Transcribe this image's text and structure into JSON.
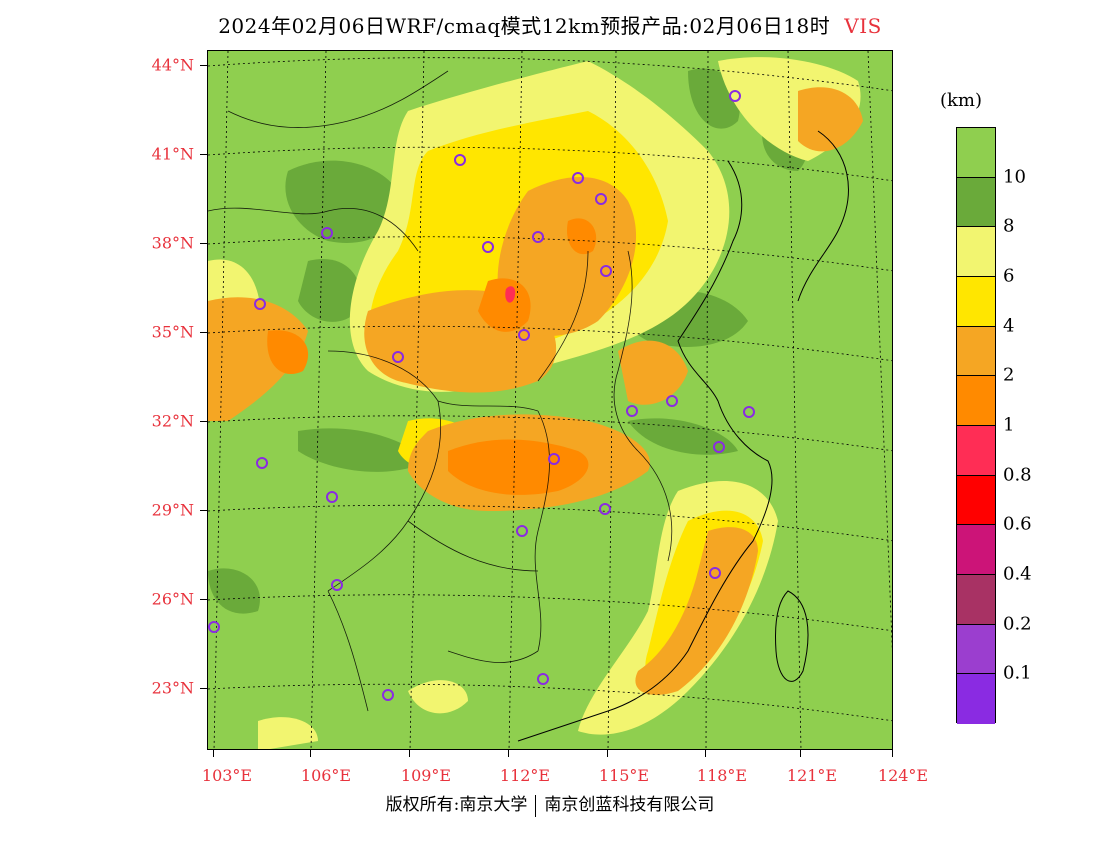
{
  "title": "2024年02月06日WRF/cmaq模式12km预报产品:02月06日18时",
  "variable": "VIS",
  "unit_label": "(km)",
  "latitude_labels": [
    "44°N",
    "41°N",
    "38°N",
    "35°N",
    "32°N",
    "29°N",
    "26°N",
    "23°N"
  ],
  "longitude_labels": [
    "103°E",
    "106°E",
    "109°E",
    "112°E",
    "115°E",
    "118°E",
    "121°E",
    "124°E"
  ],
  "colorbar": {
    "colors": [
      "#8fcf4f",
      "#6aaa3a",
      "#f2f570",
      "#ffe600",
      "#f5a623",
      "#ff8a00",
      "#ff2d55",
      "#ff0000",
      "#cc1478",
      "#a83264",
      "#9b3ecf",
      "#8a2be2"
    ],
    "labels": [
      "10",
      "8",
      "6",
      "4",
      "2",
      "1",
      "0.8",
      "0.6",
      "0.4",
      "0.2",
      "0.1"
    ]
  },
  "footer": {
    "left": "版权所有:南京大学",
    "right": "南京创蓝科技有限公司"
  }
}
